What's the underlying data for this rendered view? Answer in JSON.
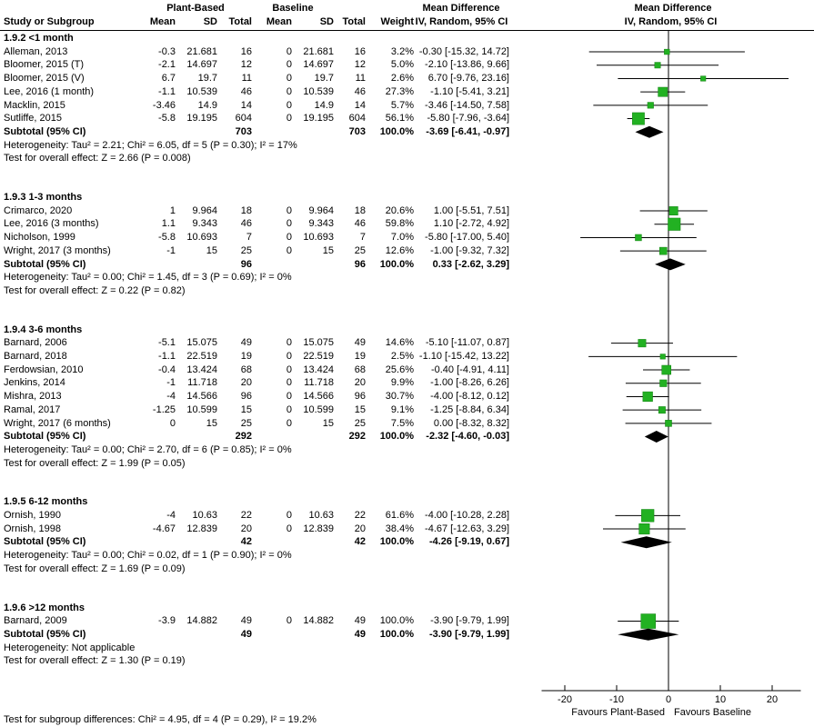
{
  "header": {
    "columns": {
      "study": "Study or Subgroup",
      "mean": "Mean",
      "sd": "SD",
      "total": "Total",
      "weight": "Weight"
    },
    "groups": {
      "g1": "Plant-Based",
      "g2": "Baseline"
    },
    "effect": {
      "title": "Mean Difference",
      "subtitle": "IV, Random, 95% CI"
    }
  },
  "axis": {
    "ticks": [
      -20,
      -10,
      0,
      10,
      20
    ],
    "min": -25,
    "max": 25,
    "favours_left": "Favours Plant-Based",
    "favours_right": "Favours Baseline"
  },
  "colors": {
    "square_fill": "#22b122",
    "square_stroke": "#118011",
    "diamond": "#000000",
    "axis": "#000000",
    "text": "#000000"
  },
  "footer": {
    "subgroup_test": "Test for subgroup differences: Chi² = 4.95, df = 4 (P = 0.29), I² = 19.2%"
  },
  "chart_data": {
    "type": "forest",
    "effect_measure": "Mean Difference, IV, Random, 95% CI",
    "subgroups": [
      {
        "label": "1.9.2 <1 month",
        "studies": [
          {
            "name": "Alleman, 2013",
            "mean1": "-0.3",
            "sd1": "21.681",
            "n1": "16",
            "mean2": "0",
            "sd2": "21.681",
            "n2": "16",
            "weight": "3.2%",
            "ci": "-0.30 [-15.32, 14.72]"
          },
          {
            "name": "Bloomer, 2015 (T)",
            "mean1": "-2.1",
            "sd1": "14.697",
            "n1": "12",
            "mean2": "0",
            "sd2": "14.697",
            "n2": "12",
            "weight": "5.0%",
            "ci": "-2.10 [-13.86, 9.66]"
          },
          {
            "name": "Bloomer, 2015 (V)",
            "mean1": "6.7",
            "sd1": "19.7",
            "n1": "11",
            "mean2": "0",
            "sd2": "19.7",
            "n2": "11",
            "weight": "2.6%",
            "ci": "6.70 [-9.76, 23.16]"
          },
          {
            "name": "Lee, 2016 (1 month)",
            "mean1": "-1.1",
            "sd1": "10.539",
            "n1": "46",
            "mean2": "0",
            "sd2": "10.539",
            "n2": "46",
            "weight": "27.3%",
            "ci": "-1.10 [-5.41, 3.21]"
          },
          {
            "name": "Macklin, 2015",
            "mean1": "-3.46",
            "sd1": "14.9",
            "n1": "14",
            "mean2": "0",
            "sd2": "14.9",
            "n2": "14",
            "weight": "5.7%",
            "ci": "-3.46 [-14.50, 7.58]"
          },
          {
            "name": "Sutliffe, 2015",
            "mean1": "-5.8",
            "sd1": "19.195",
            "n1": "604",
            "mean2": "0",
            "sd2": "19.195",
            "n2": "604",
            "weight": "56.1%",
            "ci": "-5.80 [-7.96, -3.64]"
          }
        ],
        "subtotal": {
          "label": "Subtotal (95% CI)",
          "n1": "703",
          "n2": "703",
          "weight": "100.0%",
          "ci": "-3.69 [-6.41, -0.97]"
        },
        "heterogeneity": "Heterogeneity: Tau² = 2.21; Chi² = 6.05, df = 5 (P = 0.30); I² = 17%",
        "overall": "Test for overall effect: Z = 2.66 (P = 0.008)"
      },
      {
        "label": "1.9.3 1-3 months",
        "studies": [
          {
            "name": "Crimarco, 2020",
            "mean1": "1",
            "sd1": "9.964",
            "n1": "18",
            "mean2": "0",
            "sd2": "9.964",
            "n2": "18",
            "weight": "20.6%",
            "ci": "1.00 [-5.51, 7.51]"
          },
          {
            "name": "Lee, 2016 (3 months)",
            "mean1": "1.1",
            "sd1": "9.343",
            "n1": "46",
            "mean2": "0",
            "sd2": "9.343",
            "n2": "46",
            "weight": "59.8%",
            "ci": "1.10 [-2.72, 4.92]"
          },
          {
            "name": "Nicholson, 1999",
            "mean1": "-5.8",
            "sd1": "10.693",
            "n1": "7",
            "mean2": "0",
            "sd2": "10.693",
            "n2": "7",
            "weight": "7.0%",
            "ci": "-5.80 [-17.00, 5.40]"
          },
          {
            "name": "Wright, 2017 (3 months)",
            "mean1": "-1",
            "sd1": "15",
            "n1": "25",
            "mean2": "0",
            "sd2": "15",
            "n2": "25",
            "weight": "12.6%",
            "ci": "-1.00 [-9.32, 7.32]"
          }
        ],
        "subtotal": {
          "label": "Subtotal (95% CI)",
          "n1": "96",
          "n2": "96",
          "weight": "100.0%",
          "ci": "0.33 [-2.62, 3.29]"
        },
        "heterogeneity": "Heterogeneity: Tau² = 0.00; Chi² = 1.45, df = 3 (P = 0.69); I² = 0%",
        "overall": "Test for overall effect: Z = 0.22 (P = 0.82)"
      },
      {
        "label": "1.9.4 3-6 months",
        "studies": [
          {
            "name": "Barnard, 2006",
            "mean1": "-5.1",
            "sd1": "15.075",
            "n1": "49",
            "mean2": "0",
            "sd2": "15.075",
            "n2": "49",
            "weight": "14.6%",
            "ci": "-5.10 [-11.07, 0.87]"
          },
          {
            "name": "Barnard, 2018",
            "mean1": "-1.1",
            "sd1": "22.519",
            "n1": "19",
            "mean2": "0",
            "sd2": "22.519",
            "n2": "19",
            "weight": "2.5%",
            "ci": "-1.10 [-15.42, 13.22]"
          },
          {
            "name": "Ferdowsian, 2010",
            "mean1": "-0.4",
            "sd1": "13.424",
            "n1": "68",
            "mean2": "0",
            "sd2": "13.424",
            "n2": "68",
            "weight": "25.6%",
            "ci": "-0.40 [-4.91, 4.11]"
          },
          {
            "name": "Jenkins, 2014",
            "mean1": "-1",
            "sd1": "11.718",
            "n1": "20",
            "mean2": "0",
            "sd2": "11.718",
            "n2": "20",
            "weight": "9.9%",
            "ci": "-1.00 [-8.26, 6.26]"
          },
          {
            "name": "Mishra, 2013",
            "mean1": "-4",
            "sd1": "14.566",
            "n1": "96",
            "mean2": "0",
            "sd2": "14.566",
            "n2": "96",
            "weight": "30.7%",
            "ci": "-4.00 [-8.12, 0.12]"
          },
          {
            "name": "Ramal, 2017",
            "mean1": "-1.25",
            "sd1": "10.599",
            "n1": "15",
            "mean2": "0",
            "sd2": "10.599",
            "n2": "15",
            "weight": "9.1%",
            "ci": "-1.25 [-8.84, 6.34]"
          },
          {
            "name": "Wright, 2017 (6 months)",
            "mean1": "0",
            "sd1": "15",
            "n1": "25",
            "mean2": "0",
            "sd2": "15",
            "n2": "25",
            "weight": "7.5%",
            "ci": "0.00 [-8.32, 8.32]"
          }
        ],
        "subtotal": {
          "label": "Subtotal (95% CI)",
          "n1": "292",
          "n2": "292",
          "weight": "100.0%",
          "ci": "-2.32 [-4.60, -0.03]"
        },
        "heterogeneity": "Heterogeneity: Tau² = 0.00; Chi² = 2.70, df = 6 (P = 0.85); I² = 0%",
        "overall": "Test for overall effect: Z = 1.99 (P = 0.05)"
      },
      {
        "label": "1.9.5 6-12 months",
        "studies": [
          {
            "name": "Ornish, 1990",
            "mean1": "-4",
            "sd1": "10.63",
            "n1": "22",
            "mean2": "0",
            "sd2": "10.63",
            "n2": "22",
            "weight": "61.6%",
            "ci": "-4.00 [-10.28, 2.28]"
          },
          {
            "name": "Ornish, 1998",
            "mean1": "-4.67",
            "sd1": "12.839",
            "n1": "20",
            "mean2": "0",
            "sd2": "12.839",
            "n2": "20",
            "weight": "38.4%",
            "ci": "-4.67 [-12.63, 3.29]"
          }
        ],
        "subtotal": {
          "label": "Subtotal (95% CI)",
          "n1": "42",
          "n2": "42",
          "weight": "100.0%",
          "ci": "-4.26 [-9.19, 0.67]"
        },
        "heterogeneity": "Heterogeneity: Tau² = 0.00; Chi² = 0.02, df = 1 (P = 0.90); I² = 0%",
        "overall": "Test for overall effect: Z = 1.69 (P = 0.09)"
      },
      {
        "label": "1.9.6 >12 months",
        "studies": [
          {
            "name": "Barnard, 2009",
            "mean1": "-3.9",
            "sd1": "14.882",
            "n1": "49",
            "mean2": "0",
            "sd2": "14.882",
            "n2": "49",
            "weight": "100.0%",
            "ci": "-3.90 [-9.79, 1.99]"
          }
        ],
        "subtotal": {
          "label": "Subtotal (95% CI)",
          "n1": "49",
          "n2": "49",
          "weight": "100.0%",
          "ci": "-3.90 [-9.79, 1.99]"
        },
        "heterogeneity": "Heterogeneity: Not applicable",
        "overall": "Test for overall effect: Z = 1.30 (P = 0.19)"
      }
    ]
  }
}
